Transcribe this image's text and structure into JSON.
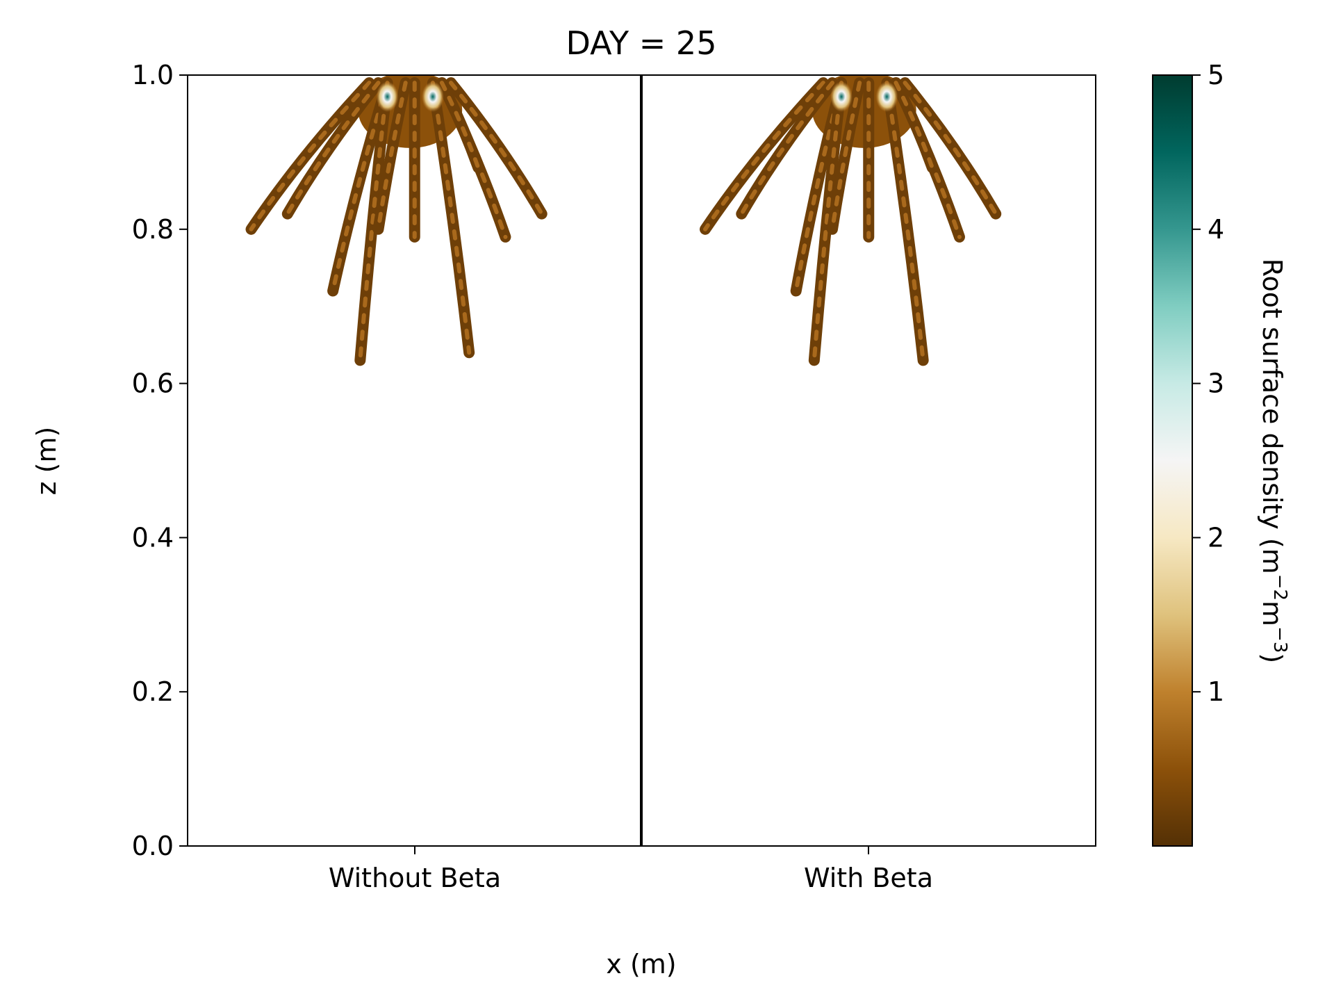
{
  "chart_data": {
    "type": "heatmap",
    "title": "DAY = 25",
    "xlabel": "x (m)",
    "ylabel": "z (m)",
    "ylim": [
      0.0,
      1.0
    ],
    "y_ticks": [
      "0.0",
      "0.2",
      "0.4",
      "0.6",
      "0.8",
      "1.0"
    ],
    "categories": [
      "Without Beta",
      "With Beta"
    ],
    "colorbar": {
      "label": "Root surface density (m",
      "label_sup1": "−2",
      "label_mid": "m",
      "label_sup2": "−3",
      "label_end": ")",
      "range": [
        0,
        5
      ],
      "ticks": [
        "1",
        "2",
        "3",
        "4",
        "5"
      ],
      "colormap": "BrBG",
      "colors": [
        "#543005",
        "#8c510a",
        "#bf812d",
        "#dfc27d",
        "#f6e8c3",
        "#f5f5f5",
        "#c7eae5",
        "#80cdc1",
        "#35978f",
        "#01665e",
        "#003c30"
      ]
    },
    "panels": [
      {
        "name": "Without Beta",
        "max_depth_z": 0.63,
        "hotspots_x": [
          0.22,
          0.27
        ],
        "roots": [
          {
            "x0": 0.2,
            "x1": 0.07,
            "z1": 0.8
          },
          {
            "x0": 0.21,
            "x1": 0.11,
            "z1": 0.82
          },
          {
            "x0": 0.22,
            "x1": 0.16,
            "z1": 0.72
          },
          {
            "x0": 0.22,
            "x1": 0.19,
            "z1": 0.63
          },
          {
            "x0": 0.24,
            "x1": 0.21,
            "z1": 0.8
          },
          {
            "x0": 0.25,
            "x1": 0.25,
            "z1": 0.79
          },
          {
            "x0": 0.27,
            "x1": 0.31,
            "z1": 0.64
          },
          {
            "x0": 0.28,
            "x1": 0.35,
            "z1": 0.79
          },
          {
            "x0": 0.29,
            "x1": 0.39,
            "z1": 0.82
          },
          {
            "x0": 0.28,
            "x1": 0.32,
            "z1": 0.88
          }
        ]
      },
      {
        "name": "With Beta",
        "max_depth_z": 0.63,
        "hotspots_x": [
          0.72,
          0.77
        ],
        "roots": [
          {
            "x0": 0.7,
            "x1": 0.57,
            "z1": 0.8
          },
          {
            "x0": 0.71,
            "x1": 0.61,
            "z1": 0.82
          },
          {
            "x0": 0.72,
            "x1": 0.67,
            "z1": 0.72
          },
          {
            "x0": 0.72,
            "x1": 0.69,
            "z1": 0.63
          },
          {
            "x0": 0.74,
            "x1": 0.71,
            "z1": 0.8
          },
          {
            "x0": 0.75,
            "x1": 0.75,
            "z1": 0.79
          },
          {
            "x0": 0.77,
            "x1": 0.81,
            "z1": 0.63
          },
          {
            "x0": 0.78,
            "x1": 0.85,
            "z1": 0.79
          },
          {
            "x0": 0.79,
            "x1": 0.89,
            "z1": 0.82
          },
          {
            "x0": 0.78,
            "x1": 0.82,
            "z1": 0.88
          }
        ]
      }
    ]
  }
}
